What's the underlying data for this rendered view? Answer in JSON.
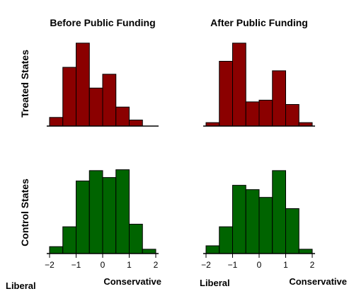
{
  "colors": {
    "treated": "#8b0000",
    "control": "#006400",
    "outline": "#000000"
  },
  "column_titles": [
    "Before Public Funding",
    "After Public Funding"
  ],
  "row_labels": [
    "Treated States",
    "Control States"
  ],
  "axis_end_labels": {
    "left": "Liberal",
    "right": "Conservative"
  },
  "chart_data": [
    {
      "type": "bar",
      "row": "Treated States",
      "column": "Before Public Funding",
      "bins": [
        -1.75,
        -1.25,
        -0.75,
        -0.25,
        0.25,
        0.75,
        1.25
      ],
      "bin_width": 0.5,
      "values": [
        0.1,
        0.68,
        0.96,
        0.44,
        0.6,
        0.22,
        0.07
      ],
      "xlim": [
        -2,
        2
      ],
      "xticks": [
        -2,
        -1,
        0,
        1,
        2
      ],
      "ylim": [
        0,
        1
      ]
    },
    {
      "type": "bar",
      "row": "Treated States",
      "column": "After Public Funding",
      "bins": [
        -1.75,
        -1.25,
        -0.75,
        -0.25,
        0.25,
        0.75,
        1.25,
        1.75
      ],
      "bin_width": 0.5,
      "values": [
        0.04,
        0.75,
        0.96,
        0.28,
        0.3,
        0.64,
        0.25,
        0.04
      ],
      "xlim": [
        -2,
        2
      ],
      "xticks": [
        -2,
        -1,
        0,
        1,
        2
      ],
      "ylim": [
        0,
        1
      ]
    },
    {
      "type": "bar",
      "row": "Control States",
      "column": "Before Public Funding",
      "bins": [
        -1.75,
        -1.25,
        -0.75,
        -0.25,
        0.25,
        0.75,
        1.25,
        1.75
      ],
      "bin_width": 0.5,
      "values": [
        0.08,
        0.31,
        0.84,
        0.96,
        0.88,
        0.97,
        0.34,
        0.05
      ],
      "xlim": [
        -2,
        2
      ],
      "xticks": [
        -2,
        -1,
        0,
        1,
        2
      ],
      "ylim": [
        0,
        1
      ]
    },
    {
      "type": "bar",
      "row": "Control States",
      "column": "After Public Funding",
      "bins": [
        -1.75,
        -1.25,
        -0.75,
        -0.25,
        0.25,
        0.75,
        1.25,
        1.75
      ],
      "bin_width": 0.5,
      "values": [
        0.09,
        0.31,
        0.79,
        0.74,
        0.65,
        0.96,
        0.52,
        0.05
      ],
      "xlim": [
        -2,
        2
      ],
      "xticks": [
        -2,
        -1,
        0,
        1,
        2
      ],
      "ylim": [
        0,
        1
      ]
    }
  ]
}
